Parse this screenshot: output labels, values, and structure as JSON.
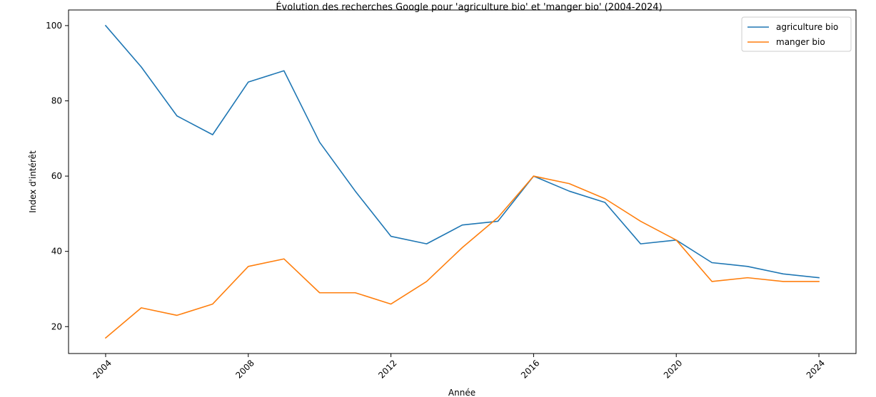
{
  "chart_data": {
    "type": "line",
    "title": "Évolution des recherches Google pour 'agriculture bio' et 'manger bio' (2004-2024)",
    "xlabel": "Année",
    "ylabel": "Index d'intérêt",
    "x": [
      2004,
      2005,
      2006,
      2007,
      2008,
      2009,
      2010,
      2011,
      2012,
      2013,
      2014,
      2015,
      2016,
      2017,
      2018,
      2019,
      2020,
      2021,
      2022,
      2023,
      2024
    ],
    "xticks": [
      "2004",
      "2008",
      "2012",
      "2016",
      "2020",
      "2024"
    ],
    "yticks": [
      "20",
      "40",
      "60",
      "80",
      "100"
    ],
    "xlim": [
      2002.96,
      2025.04
    ],
    "ylim": [
      12.85,
      104.15
    ],
    "series": [
      {
        "name": "agriculture bio",
        "color": "#1f77b4",
        "values": [
          100,
          89,
          76,
          71,
          85,
          88,
          69,
          56,
          44,
          42,
          47,
          48,
          60,
          56,
          53,
          42,
          43,
          37,
          36,
          34,
          33
        ]
      },
      {
        "name": "manger bio",
        "color": "#ff7f0e",
        "values": [
          17,
          25,
          23,
          26,
          36,
          38,
          29,
          29,
          26,
          32,
          41,
          49,
          60,
          58,
          54,
          48,
          43,
          32,
          33,
          32,
          32
        ]
      }
    ],
    "legend": "top-right",
    "grid": false
  }
}
